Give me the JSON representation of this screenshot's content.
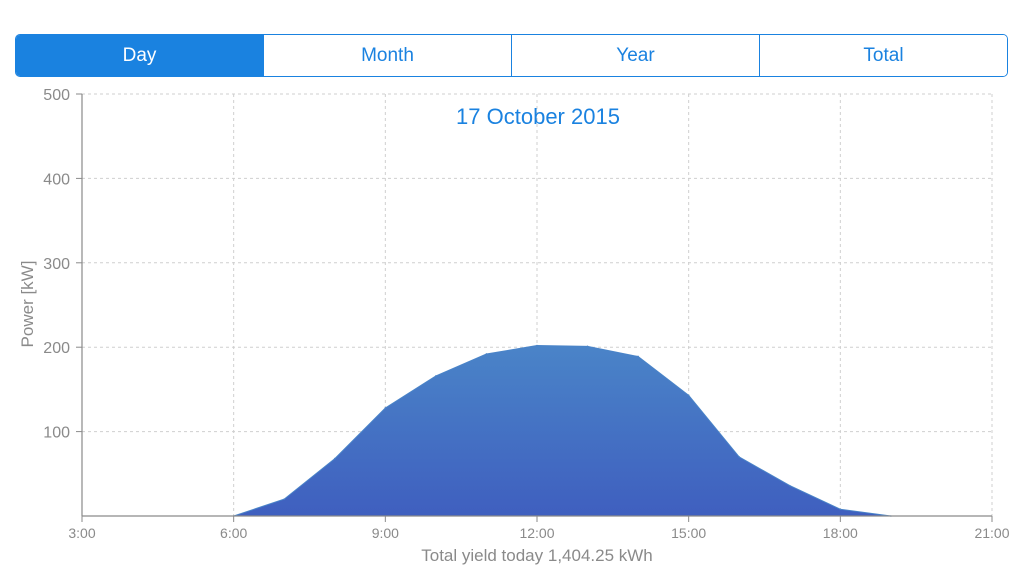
{
  "tabs": [
    {
      "label": "Day",
      "active": true
    },
    {
      "label": "Month",
      "active": false
    },
    {
      "label": "Year",
      "active": false
    },
    {
      "label": "Total",
      "active": false
    }
  ],
  "colors": {
    "accent": "#1a82e0",
    "area_top": "#4a84c8",
    "area_bottom": "#3f5fbf",
    "grid": "#cfcfcf",
    "axis": "#8a8a8a"
  },
  "chart_data": {
    "type": "area",
    "title": "17 October 2015",
    "xlabel": "Total yield today 1,404.25 kWh",
    "ylabel": "Power [kW]",
    "x_ticks": [
      "3:00",
      "6:00",
      "9:00",
      "12:00",
      "15:00",
      "18:00",
      "21:00"
    ],
    "y_ticks": [
      100,
      200,
      300,
      400,
      500
    ],
    "xlim_hours": [
      3,
      21
    ],
    "ylim": [
      0,
      500
    ],
    "grid": true,
    "series": [
      {
        "x_hours": [
          6,
          7,
          8,
          9,
          10,
          11,
          12,
          13,
          14,
          15,
          16,
          17,
          18,
          19
        ],
        "values": [
          0,
          20,
          68,
          128,
          166,
          192,
          202,
          201,
          189,
          143,
          70,
          36,
          8,
          0
        ]
      }
    ]
  }
}
